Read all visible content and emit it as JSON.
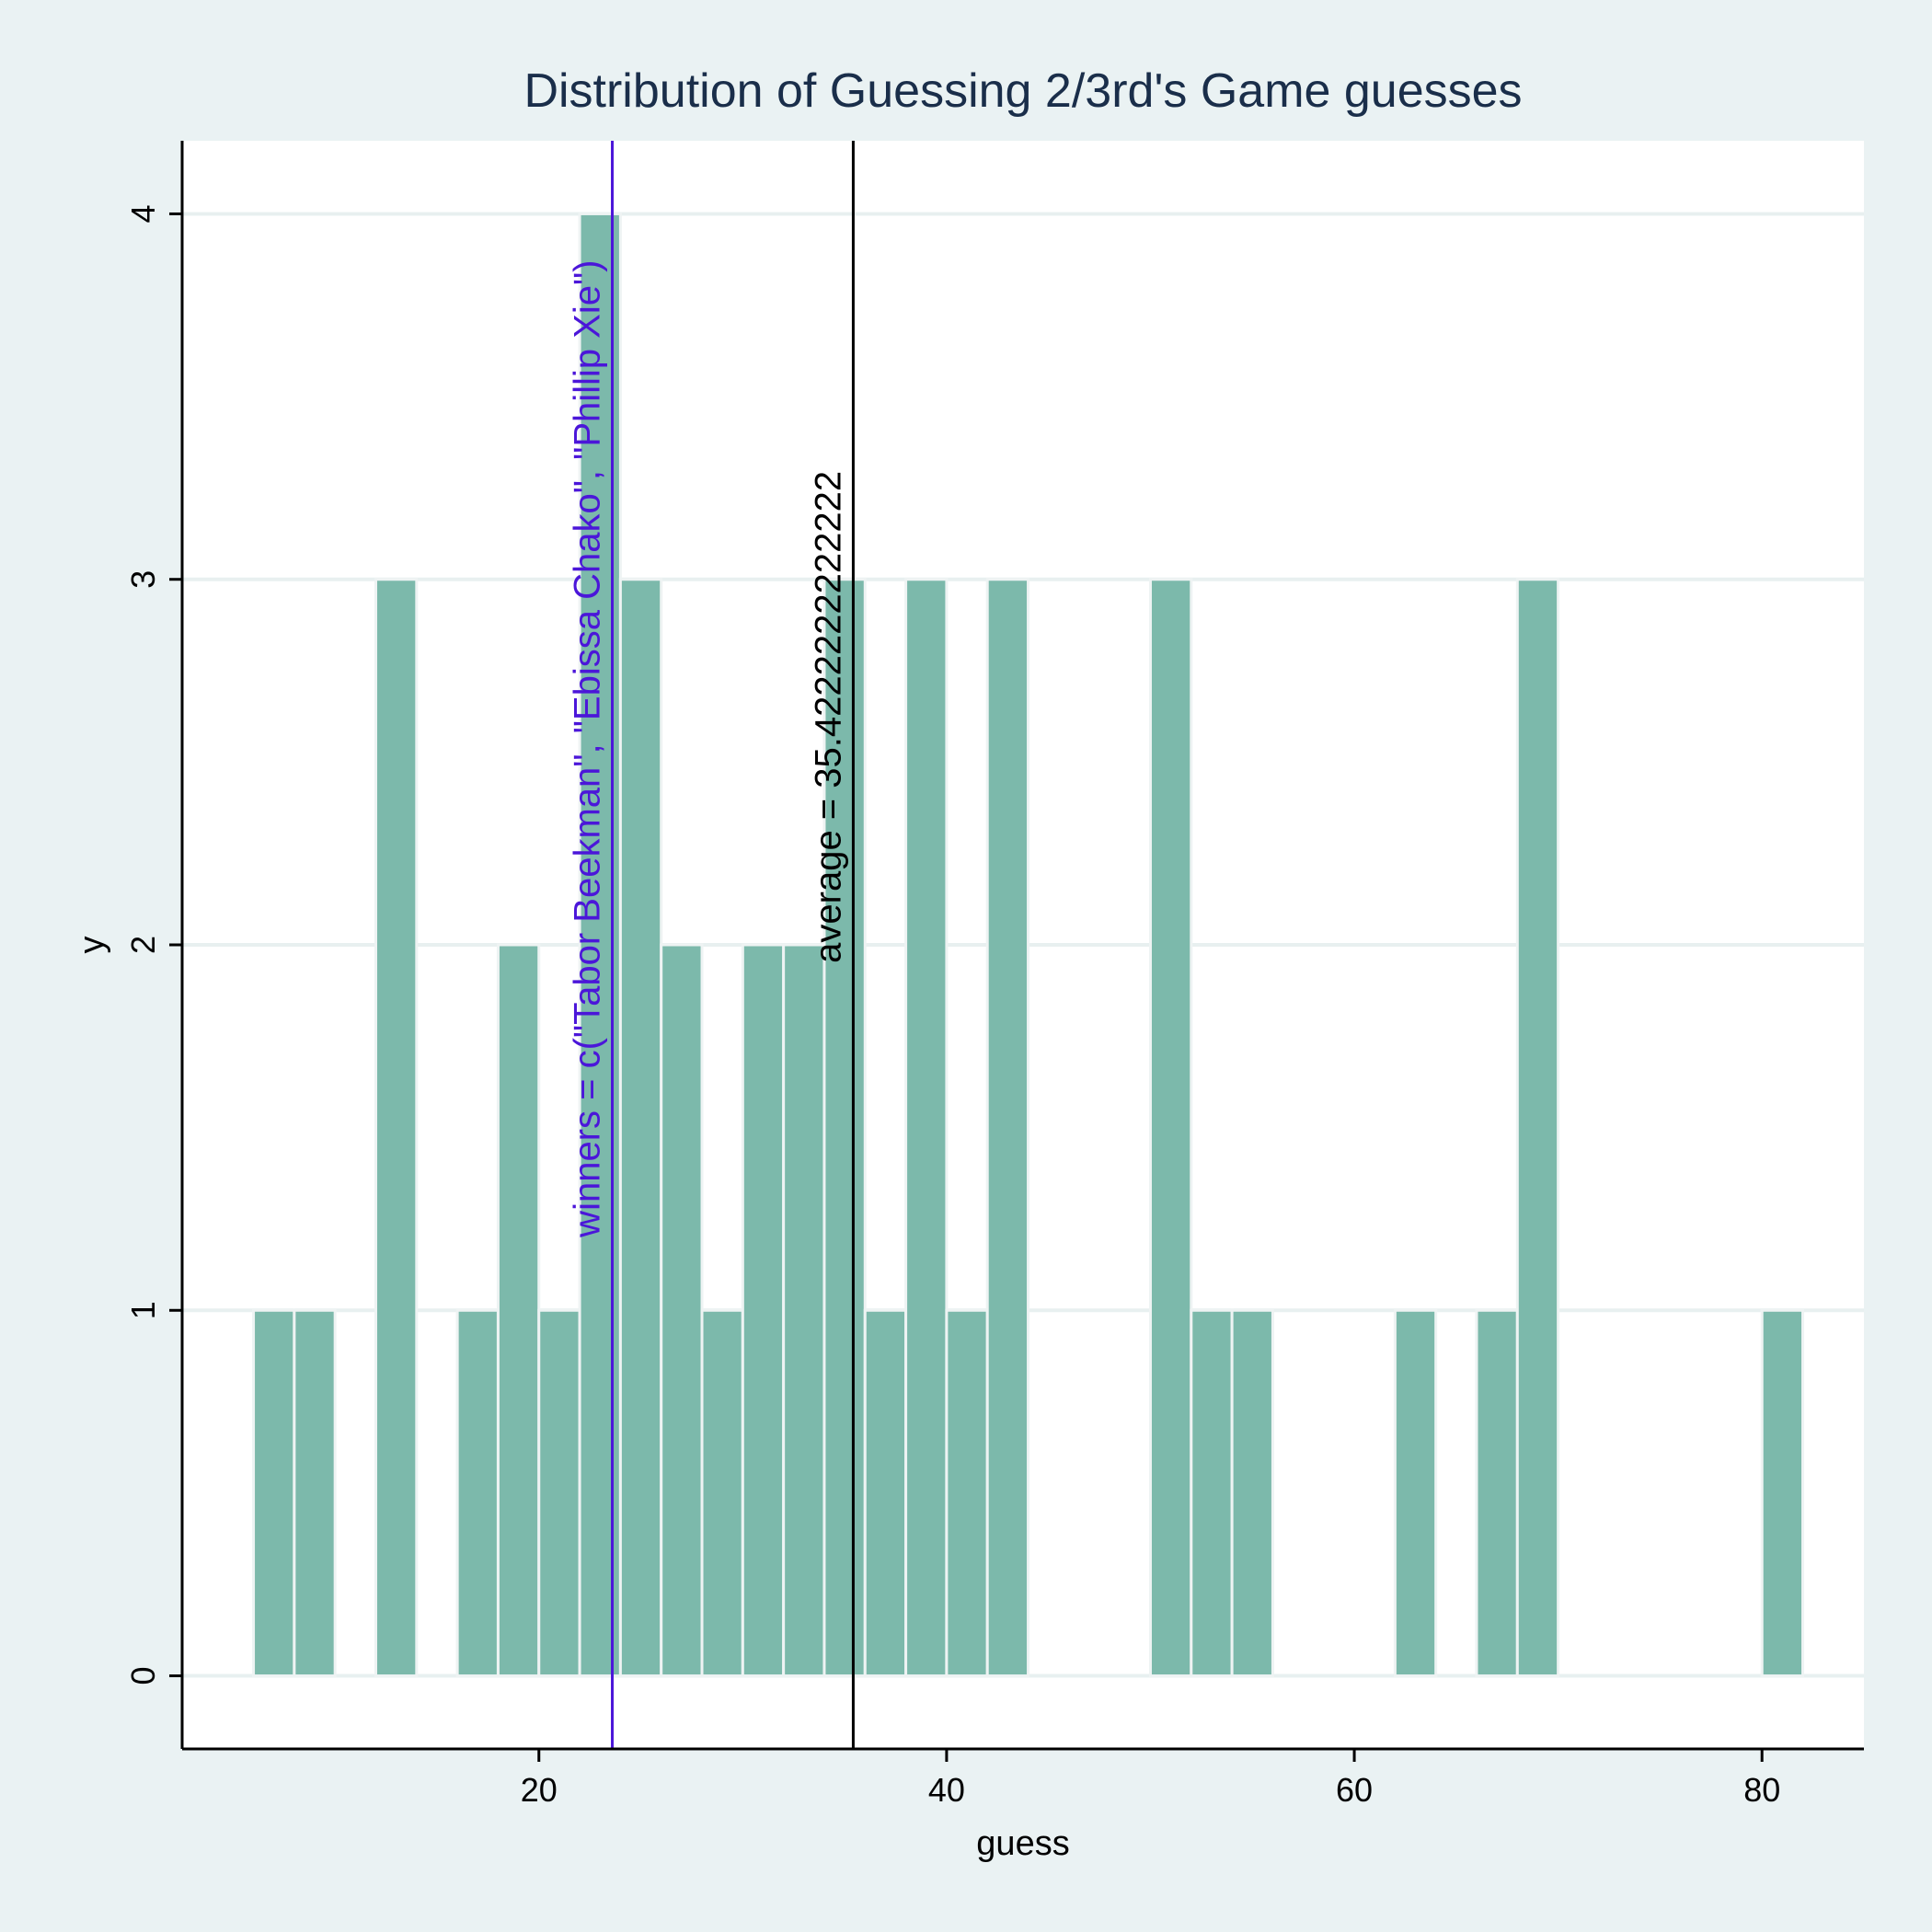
{
  "chart_data": {
    "type": "bar",
    "title": "Distribution of Guessing 2/3rd's Game guesses",
    "xlabel": "guess",
    "ylabel": "y",
    "xlim": [
      2.5,
      85
    ],
    "ylim": [
      -0.2,
      4.2
    ],
    "x_ticks": [
      20,
      40,
      60,
      80
    ],
    "y_ticks": [
      0,
      1,
      2,
      3,
      4
    ],
    "bin_width": 2,
    "bars": [
      {
        "x": 7,
        "count": 1
      },
      {
        "x": 9,
        "count": 1
      },
      {
        "x": 13,
        "count": 3
      },
      {
        "x": 17,
        "count": 1
      },
      {
        "x": 19,
        "count": 2
      },
      {
        "x": 21,
        "count": 1
      },
      {
        "x": 23,
        "count": 4
      },
      {
        "x": 25,
        "count": 3
      },
      {
        "x": 27,
        "count": 2
      },
      {
        "x": 29,
        "count": 1
      },
      {
        "x": 31,
        "count": 2
      },
      {
        "x": 33,
        "count": 2
      },
      {
        "x": 35,
        "count": 3
      },
      {
        "x": 37,
        "count": 1
      },
      {
        "x": 39,
        "count": 3
      },
      {
        "x": 41,
        "count": 1
      },
      {
        "x": 43,
        "count": 3
      },
      {
        "x": 51,
        "count": 3
      },
      {
        "x": 53,
        "count": 1
      },
      {
        "x": 55,
        "count": 1
      },
      {
        "x": 63,
        "count": 1
      },
      {
        "x": 67,
        "count": 1
      },
      {
        "x": 69,
        "count": 3
      },
      {
        "x": 81,
        "count": 1
      }
    ],
    "vlines": [
      {
        "x": 23.6,
        "color": "#4b16d9",
        "label": "winners = c(\"Tabor Beekman\", \"Ebissa Chako\", \"Phillip Xie\")",
        "label_y": 1.2
      },
      {
        "x": 35.42,
        "color": "#000000",
        "label": "average = 35.4222222222222",
        "label_y": 1.95
      }
    ],
    "bar_color": "#7cb9ab",
    "bar_edge": "#eef3f3",
    "grid": true,
    "background": "#eaf2f3",
    "plot_background": "#ffffff",
    "gridline_color": "#e8f0f0",
    "title_color": "#1a2e4a"
  }
}
